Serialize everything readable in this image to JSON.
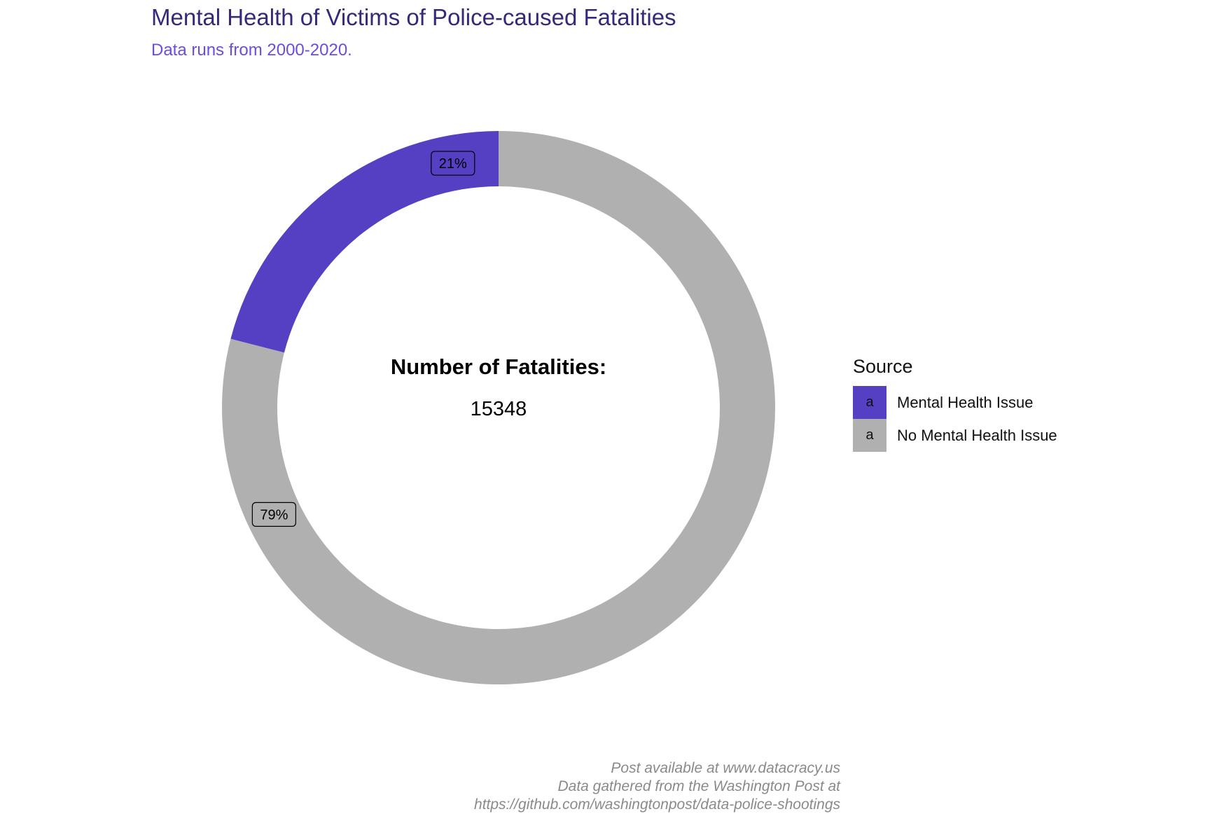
{
  "chart_data": {
    "type": "pie",
    "style": "donut",
    "title": "Mental Health of Victims of Police-caused Fatalities",
    "subtitle": "Data runs from 2000-2020.",
    "center_label": "Number of Fatalities:",
    "center_value": "15348",
    "legend_title": "Source",
    "legend_placement": "right",
    "legend_key_glyph": "a",
    "slices": [
      {
        "name": "Mental Health Issue",
        "value": 21,
        "label": "21%",
        "color": "#553fc2"
      },
      {
        "name": "No Mental Health Issue",
        "value": 79,
        "label": "79%",
        "color": "#b0b0b0"
      }
    ],
    "caption": [
      "Post available at www.datacracy.us",
      "Data gathered from the Washington Post at",
      "https://github.com/washingtonpost/data-police-shootings"
    ]
  }
}
